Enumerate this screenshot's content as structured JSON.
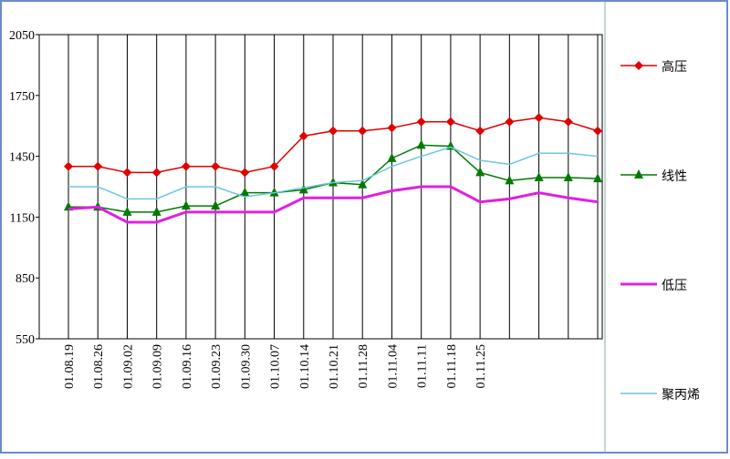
{
  "chart_data": {
    "type": "line",
    "categories": [
      "01.08.19",
      "01.08.26",
      "01.09.02",
      "01.09.09",
      "01.09.16",
      "01.09.23",
      "01.09.30",
      "01.10.07",
      "01.10.14",
      "01.10.21",
      "01.11.28",
      "01.11.04",
      "01.11.11",
      "01.11.18",
      "01.11.25",
      null,
      null,
      null,
      null
    ],
    "series": [
      {
        "name": "高压",
        "color": "#e00000",
        "marker": "diamond",
        "values": [
          1400,
          1400,
          1370,
          1370,
          1400,
          1400,
          1370,
          1400,
          1550,
          1575,
          1575,
          1590,
          1620,
          1620,
          1575,
          1620,
          1640,
          1620,
          1575
        ]
      },
      {
        "name": "线性",
        "color": "#007a00",
        "marker": "triangle",
        "values": [
          1200,
          1200,
          1175,
          1175,
          1205,
          1205,
          1270,
          1270,
          1285,
          1320,
          1310,
          1440,
          1505,
          1500,
          1370,
          1330,
          1345,
          1345,
          1340
        ]
      },
      {
        "name": "低压",
        "color": "#e020e0",
        "marker": "none",
        "values": [
          1190,
          1200,
          1125,
          1125,
          1175,
          1175,
          1175,
          1175,
          1245,
          1245,
          1245,
          1280,
          1300,
          1300,
          1225,
          1240,
          1270,
          1245,
          1225
        ]
      },
      {
        "name": "聚丙烯",
        "color": "#6ec6e0",
        "marker": "none",
        "values": [
          1300,
          1300,
          1240,
          1240,
          1300,
          1300,
          1250,
          1270,
          1295,
          1320,
          1330,
          1400,
          1450,
          1495,
          1430,
          1410,
          1465,
          1465,
          1450
        ]
      }
    ],
    "ylim": [
      550,
      2050
    ],
    "yticks": [
      550,
      850,
      1150,
      1450,
      1750,
      2050
    ],
    "grid": true,
    "legend": "right"
  }
}
